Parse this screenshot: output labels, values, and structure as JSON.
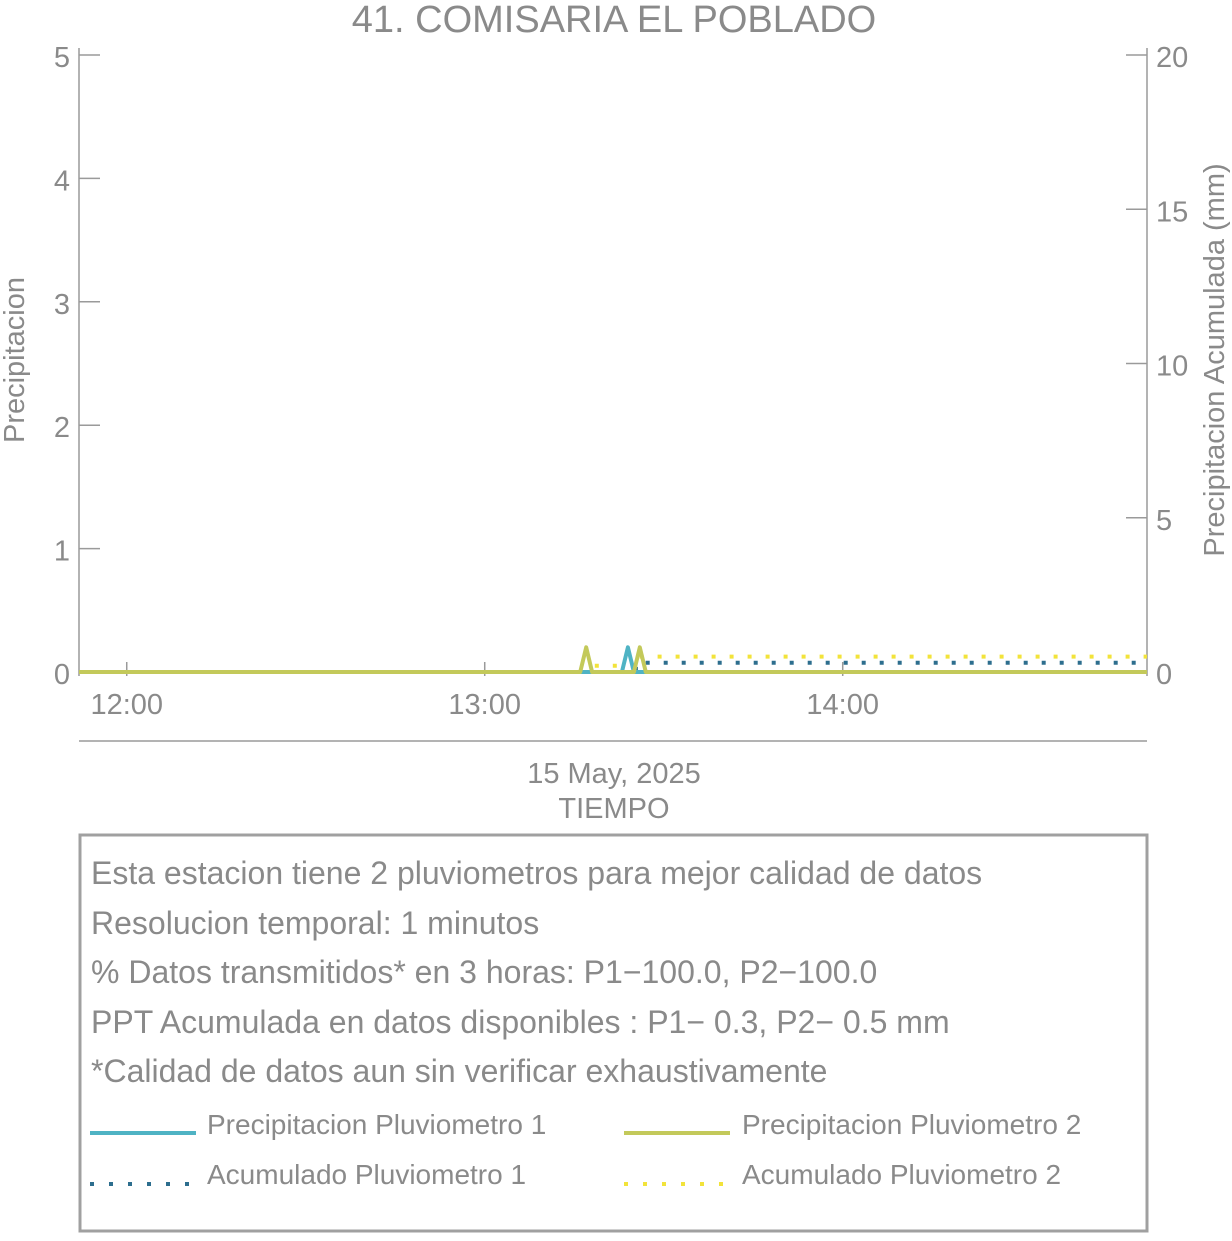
{
  "chart_data": {
    "type": "line",
    "title": "41. COMISARIA EL POBLADO",
    "ylabel": "Precipitacion",
    "y2label": "Precipitacion Acumulada (mm)",
    "xlabel": "TIEMPO",
    "date_label": "15 May, 2025",
    "ylim": [
      0,
      5
    ],
    "y2lim": [
      0,
      20
    ],
    "yticks": [
      "0",
      "1",
      "2",
      "3",
      "4",
      "5"
    ],
    "y2ticks": [
      "0",
      "5",
      "10",
      "15",
      "20"
    ],
    "xlim": [
      "11:52",
      "14:51"
    ],
    "xticks": [
      {
        "time": "12:00",
        "label": "12:00"
      },
      {
        "time": "13:00",
        "label": "13:00"
      },
      {
        "time": "14:00",
        "label": "14:00"
      }
    ],
    "grid": false,
    "series": [
      {
        "name": "Precipitacion Pluviometro 1",
        "axis": "left",
        "style": "solid",
        "color": "#4fb3c4",
        "points": [
          [
            "11:52",
            0
          ],
          [
            "13:20",
            0
          ],
          [
            "13:23",
            0
          ],
          [
            "13:24",
            0.2
          ],
          [
            "13:25",
            0
          ],
          [
            "13:26",
            0
          ],
          [
            "14:51",
            0
          ]
        ]
      },
      {
        "name": "Precipitacion Pluviometro 2",
        "axis": "left",
        "style": "solid",
        "color": "#c3c95a",
        "points": [
          [
            "11:52",
            0
          ],
          [
            "13:16",
            0
          ],
          [
            "13:17",
            0.2
          ],
          [
            "13:18",
            0
          ],
          [
            "13:25",
            0
          ],
          [
            "13:26",
            0.2
          ],
          [
            "13:27",
            0
          ],
          [
            "14:51",
            0
          ]
        ]
      },
      {
        "name": "Acumulado Pluviometro 1",
        "axis": "right",
        "style": "dotted",
        "color": "#2d6e8e",
        "points": [
          [
            "11:52",
            0
          ],
          [
            "13:18",
            0
          ],
          [
            "13:24",
            0.1
          ],
          [
            "13:26",
            0.3
          ],
          [
            "14:51",
            0.3
          ]
        ]
      },
      {
        "name": "Acumulado Pluviometro 2",
        "axis": "right",
        "style": "dotted",
        "color": "#f2e33a",
        "points": [
          [
            "11:52",
            0
          ],
          [
            "13:17",
            0.2
          ],
          [
            "13:26",
            0.5
          ],
          [
            "14:51",
            0.5
          ]
        ]
      }
    ]
  },
  "info_box": {
    "lines": [
      "Esta estacion tiene 2 pluviometros para mejor calidad de datos",
      "Resolucion temporal: 1 minutos",
      "% Datos transmitidos* en 3 horas: P1−100.0, P2−100.0",
      "PPT Acumulada en datos disponibles : P1−  0.3, P2−  0.5 mm",
      "*Calidad de datos aun sin verificar exhaustivamente"
    ]
  },
  "legend": [
    {
      "label": "Precipitacion Pluviometro 1",
      "color": "#4fb3c4",
      "style": "solid"
    },
    {
      "label": "Precipitacion Pluviometro 2",
      "color": "#c3c95a",
      "style": "solid"
    },
    {
      "label": "Acumulado Pluviometro 1",
      "color": "#2d6e8e",
      "style": "dotted"
    },
    {
      "label": "Acumulado Pluviometro 2",
      "color": "#f2e33a",
      "style": "dotted"
    }
  ],
  "colors": {
    "text": "#8a8a8a",
    "axis": "#9a9a9a",
    "box_border": "#a0a0a0"
  }
}
